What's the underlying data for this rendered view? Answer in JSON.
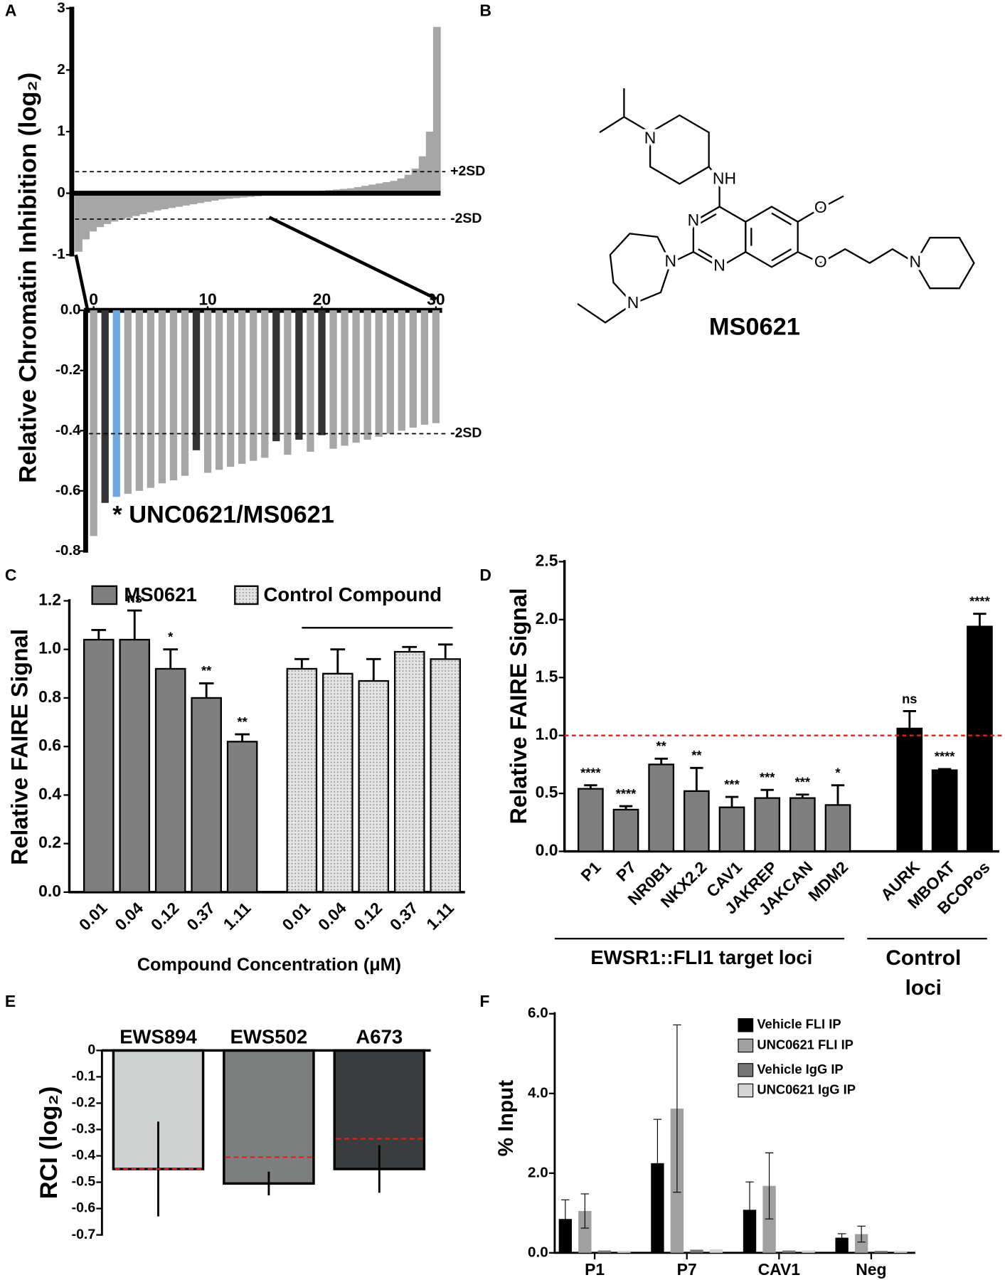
{
  "panel_labels": [
    "A",
    "B",
    "C",
    "D",
    "E",
    "F"
  ],
  "structure": {
    "atoms": [
      "N",
      "NH",
      "N",
      "N",
      "N",
      "N",
      "O",
      "O",
      "N"
    ],
    "name": "MS0621"
  },
  "chart_data": [
    {
      "type": "bar",
      "ylabel": "Relative Chromatin Inhibition (log₂)",
      "values": [
        -0.95,
        -0.75,
        -0.62,
        -0.55,
        -0.5,
        -0.46,
        -0.43,
        -0.4,
        -0.37,
        -0.34,
        -0.31,
        -0.28,
        -0.26,
        -0.24,
        -0.22,
        -0.2,
        -0.18,
        -0.16,
        -0.14,
        -0.12,
        -0.1,
        -0.09,
        -0.08,
        -0.07,
        -0.06,
        -0.05,
        -0.04,
        -0.03,
        -0.02,
        -0.01,
        0,
        0.01,
        0.02,
        0.03,
        0.04,
        0.05,
        0.06,
        0.07,
        0.08,
        0.1,
        0.12,
        0.14,
        0.16,
        0.18,
        0.2,
        0.24,
        0.3,
        0.4,
        0.6,
        1.0,
        2.7
      ],
      "color": "#a6a6a6",
      "ylim": [
        -1,
        3
      ],
      "yticks": [
        -1,
        0,
        1,
        2,
        3
      ],
      "reference_lines": [
        {
          "value": 0.35,
          "label": "+2SD"
        },
        {
          "value": -0.42,
          "label": "-2SD"
        }
      ]
    },
    {
      "type": "bar",
      "annotation": "* UNC0621/MS0621",
      "x": [
        0,
        1,
        2,
        3,
        4,
        5,
        6,
        7,
        8,
        9,
        10,
        11,
        12,
        13,
        14,
        15,
        16,
        17,
        18,
        19,
        20,
        21,
        22,
        23,
        24,
        25,
        26,
        27,
        28,
        29,
        30
      ],
      "values": [
        -0.75,
        -0.64,
        -0.62,
        -0.61,
        -0.6,
        -0.59,
        -0.575,
        -0.565,
        -0.55,
        -0.465,
        -0.54,
        -0.53,
        -0.52,
        -0.51,
        -0.5,
        -0.49,
        -0.435,
        -0.48,
        -0.43,
        -0.47,
        -0.415,
        -0.46,
        -0.45,
        -0.44,
        -0.43,
        -0.42,
        -0.41,
        -0.4,
        -0.39,
        -0.38,
        -0.375
      ],
      "colors": [
        "#a6a6a6",
        "#333333",
        "#6fa8dc",
        "#a6a6a6",
        "#a6a6a6",
        "#a6a6a6",
        "#a6a6a6",
        "#a6a6a6",
        "#a6a6a6",
        "#333333",
        "#a6a6a6",
        "#a6a6a6",
        "#a6a6a6",
        "#a6a6a6",
        "#a6a6a6",
        "#a6a6a6",
        "#333333",
        "#a6a6a6",
        "#333333",
        "#a6a6a6",
        "#333333",
        "#a6a6a6",
        "#a6a6a6",
        "#a6a6a6",
        "#a6a6a6",
        "#a6a6a6",
        "#a6a6a6",
        "#a6a6a6",
        "#a6a6a6",
        "#a6a6a6",
        "#a6a6a6"
      ],
      "xlim": [
        -0.7,
        30.4
      ],
      "xticks": [
        0,
        10,
        20,
        30
      ],
      "ylim": [
        -0.8,
        0
      ],
      "yticks": [
        {
          "value": 0,
          "label": "0.0"
        },
        -0.2,
        -0.4,
        -0.6,
        -0.8
      ],
      "reference_lines": [
        {
          "value": -0.41,
          "label": "-2SD"
        }
      ]
    },
    {
      "type": "bar",
      "xlabel": "Compound Concentration (μM)",
      "ylabel": "Relative FAIRE Signal",
      "categories": [
        "0.01",
        "0.04",
        "0.12",
        "0.37",
        "1.11"
      ],
      "series": [
        {
          "name": "MS0621",
          "color": "#7f7f7f",
          "values": [
            1.04,
            1.04,
            0.92,
            0.8,
            0.62
          ],
          "errors": [
            0.04,
            0.12,
            0.08,
            0.06,
            0.03
          ],
          "significance": [
            null,
            "ns",
            "*",
            "**",
            "**"
          ]
        },
        {
          "name": "Control Compound",
          "color": "#e3e3e3",
          "values": [
            0.92,
            0.9,
            0.87,
            0.99,
            0.96
          ],
          "errors": [
            0.04,
            0.1,
            0.09,
            0.02,
            0.06
          ]
        }
      ],
      "ylim": [
        0,
        1.2
      ],
      "yticks": [
        {
          "value": 0,
          "label": "0.0"
        },
        0.2,
        0.4,
        0.6,
        0.8,
        {
          "value": 1,
          "label": "1.0"
        },
        1.2
      ]
    },
    {
      "type": "bar",
      "ylabel": "Relative FAIRE Signal",
      "categories": [
        "P1",
        "P7",
        "NR0B1",
        "NKX2.2",
        "CAV1",
        "JAKREP",
        "JAKCAN",
        "MDM2",
        "AURK",
        "MBOAT",
        "BCOPos"
      ],
      "values": [
        0.54,
        0.36,
        0.75,
        0.52,
        0.38,
        0.46,
        0.46,
        0.4,
        1.06,
        0.7,
        1.94
      ],
      "errors": [
        0.03,
        0.03,
        0.05,
        0.2,
        0.09,
        0.07,
        0.03,
        0.17,
        0.15,
        0.01,
        0.11
      ],
      "significance": [
        "****",
        "****",
        "**",
        "**",
        "***",
        "***",
        "***",
        "*",
        "ns",
        "****",
        "****"
      ],
      "colors": [
        "#7f7f7f",
        "#7f7f7f",
        "#7f7f7f",
        "#7f7f7f",
        "#7f7f7f",
        "#7f7f7f",
        "#7f7f7f",
        "#7f7f7f",
        "#000000",
        "#000000",
        "#000000"
      ],
      "reference_line": 1.0,
      "groups": [
        {
          "label": [
            "EWSR1::FLI1 target loci"
          ]
        },
        {
          "label": [
            "Control",
            "loci"
          ]
        }
      ],
      "ylim": [
        0,
        2.5
      ],
      "yticks": [
        {
          "value": 0,
          "label": "0.0"
        },
        0.5,
        {
          "value": 1,
          "label": "1.0"
        },
        1.5,
        {
          "value": 2,
          "label": "2.0"
        },
        2.5
      ]
    },
    {
      "type": "bar",
      "ylabel": "RCI (log₂)",
      "categories": [
        "EWS894",
        "EWS502",
        "A673"
      ],
      "values": [
        -0.45,
        -0.505,
        -0.45
      ],
      "errors": [
        0.18,
        0.045,
        0.09
      ],
      "reference_values": [
        -0.45,
        -0.405,
        -0.335
      ],
      "colors": [
        "#cfd1d0",
        "#7d7f7e",
        "#3a3d3d"
      ],
      "ylim": [
        -0.7,
        0
      ],
      "yticks": [
        0,
        -0.1,
        -0.2,
        -0.3,
        -0.4,
        -0.5,
        -0.6,
        -0.7
      ]
    },
    {
      "type": "bar",
      "ylabel": "% Input",
      "categories": [
        "P1",
        "P7",
        "CAV1",
        "Neg"
      ],
      "series": [
        {
          "name": "Vehicle FLI IP",
          "color": "#000000",
          "values": [
            0.85,
            2.25,
            1.08,
            0.38
          ],
          "errors": [
            0.48,
            1.1,
            0.7,
            0.1
          ]
        },
        {
          "name": "UNC0621 FLI IP",
          "color": "#a0a0a0",
          "values": [
            1.05,
            3.62,
            1.68,
            0.47
          ],
          "errors": [
            0.43,
            2.1,
            0.83,
            0.2
          ]
        },
        {
          "name": "Vehicle IgG IP",
          "color": "#777777",
          "values": [
            0.06,
            0.08,
            0.06,
            0.05
          ]
        },
        {
          "name": "UNC0621 IgG IP",
          "color": "#d4d4d4",
          "values": [
            0.05,
            0.09,
            0.06,
            0.05
          ]
        }
      ],
      "ylim": [
        0,
        6
      ],
      "yticks": [
        {
          "value": 0,
          "label": "0.0"
        },
        {
          "value": 2,
          "label": "2.0"
        },
        {
          "value": 4,
          "label": "4.0"
        },
        {
          "value": 6,
          "label": "6.0"
        }
      ]
    }
  ]
}
